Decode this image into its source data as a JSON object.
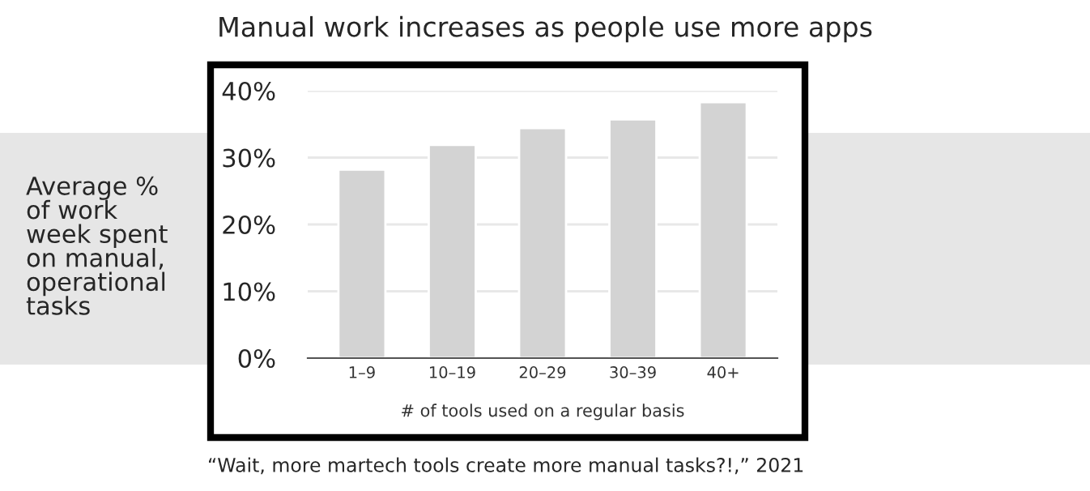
{
  "chart_data": {
    "type": "bar",
    "title": "Manual work increases as people use more apps",
    "categories": [
      "1–9",
      "10–19",
      "20–29",
      "30–39",
      "40+"
    ],
    "values": [
      28.2,
      31.9,
      34.4,
      35.7,
      38.3
    ],
    "color": "#d3d3d3",
    "xlabel": "# of tools used on a regular basis",
    "ylabel": "Average %\nof work\nweek spent\non manual,\noperational\ntasks",
    "ylim": [
      0,
      40
    ],
    "yticks": [
      {
        "value": 0,
        "label": "0%"
      },
      {
        "value": 10,
        "label": "10%"
      },
      {
        "value": 20,
        "label": "20%"
      },
      {
        "value": 30,
        "label": "30%"
      },
      {
        "value": 40,
        "label": "40%"
      }
    ],
    "grid": "y",
    "legend": false,
    "annotations": [
      "“Wait, more martech tools create more manual tasks?!,” 2021"
    ]
  }
}
